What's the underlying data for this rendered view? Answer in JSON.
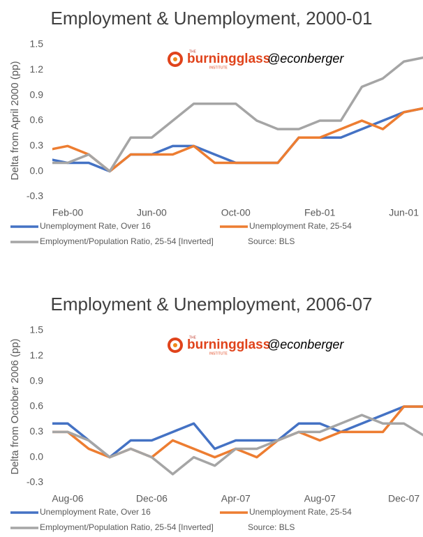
{
  "chart_data": [
    {
      "type": "line",
      "title": "Employment & Unemployment, 2000-01",
      "ylabel": "Delta from April 2000 (pp)",
      "logo": {
        "top": "THE",
        "name": "burningglass",
        "bottom": "INSTITUTE"
      },
      "annotation": "@econberger",
      "source": "Source: BLS",
      "categories": [
        null,
        "Feb-00",
        null,
        null,
        null,
        "Jun-00",
        null,
        null,
        null,
        "Oct-00",
        null,
        null,
        null,
        "Feb-01",
        null,
        null,
        null,
        "Jun-01",
        null
      ],
      "series": [
        {
          "name": "Unemployment Rate, Over 16",
          "color": "#4472c4",
          "values": [
            0.15,
            0.1,
            0.1,
            0,
            0.2,
            0.2,
            0.3,
            0.3,
            0.2,
            0.1,
            0.1,
            0.1,
            0.4,
            0.4,
            0.4,
            0.5,
            0.6,
            0.7,
            0.75
          ]
        },
        {
          "name": "Unemployment Rate, 25-54",
          "color": "#ed7d31",
          "values": [
            0.25,
            0.3,
            0.2,
            0,
            0.2,
            0.2,
            0.2,
            0.3,
            0.1,
            0.1,
            0.1,
            0.1,
            0.4,
            0.4,
            0.5,
            0.6,
            0.5,
            0.7,
            0.75
          ]
        },
        {
          "name": "Employment/Population Ratio, 25-54 [Inverted]",
          "color": "#a5a5a5",
          "values": [
            0.1,
            0.1,
            0.2,
            0,
            0.4,
            0.4,
            0.6,
            0.8,
            0.8,
            0.8,
            0.6,
            0.5,
            0.5,
            0.6,
            0.6,
            1.0,
            1.1,
            1.3,
            1.35
          ]
        }
      ],
      "ylim": [
        -0.3,
        1.5
      ],
      "yticks": [
        -0.3,
        {
          "value": 0,
          "label": "0.0"
        },
        0.3,
        0.6,
        0.9,
        1.2,
        1.5
      ],
      "grid": false
    },
    {
      "type": "line",
      "title": "Employment & Unemployment, 2006-07",
      "ylabel": "Delta from October 2006 (pp)",
      "logo": {
        "top": "THE",
        "name": "burningglass",
        "bottom": "INSTITUTE"
      },
      "annotation": "@econberger",
      "source": "Source: BLS",
      "categories": [
        null,
        "Aug-06",
        null,
        null,
        null,
        "Dec-06",
        null,
        null,
        null,
        "Apr-07",
        null,
        null,
        null,
        "Aug-07",
        null,
        null,
        null,
        "Dec-07",
        null
      ],
      "series": [
        {
          "name": "Unemployment Rate, Over 16",
          "color": "#4472c4",
          "values": [
            0.4,
            0.4,
            0.2,
            0,
            0.2,
            0.2,
            0.3,
            0.4,
            0.1,
            0.2,
            0.2,
            0.2,
            0.4,
            0.4,
            0.3,
            0.4,
            0.5,
            0.6,
            0.6
          ]
        },
        {
          "name": "Unemployment Rate, 25-54",
          "color": "#ed7d31",
          "values": [
            0.3,
            0.3,
            0.1,
            0,
            0.1,
            0,
            0.2,
            0.1,
            0,
            0.1,
            0,
            0.2,
            0.3,
            0.2,
            0.3,
            0.3,
            0.3,
            0.6,
            0.6
          ]
        },
        {
          "name": "Employment/Population Ratio, 25-54 [Inverted]",
          "color": "#a5a5a5",
          "values": [
            0.3,
            0.3,
            0.2,
            0,
            0.1,
            0,
            -0.2,
            0,
            -0.1,
            0.1,
            0.1,
            0.2,
            0.3,
            0.3,
            0.4,
            0.5,
            0.4,
            0.4,
            0.25
          ]
        }
      ],
      "ylim": [
        -0.3,
        1.5
      ],
      "yticks": [
        -0.3,
        {
          "value": 0,
          "label": "0.0"
        },
        0.3,
        0.6,
        0.9,
        1.2,
        1.5
      ],
      "grid": false
    }
  ]
}
